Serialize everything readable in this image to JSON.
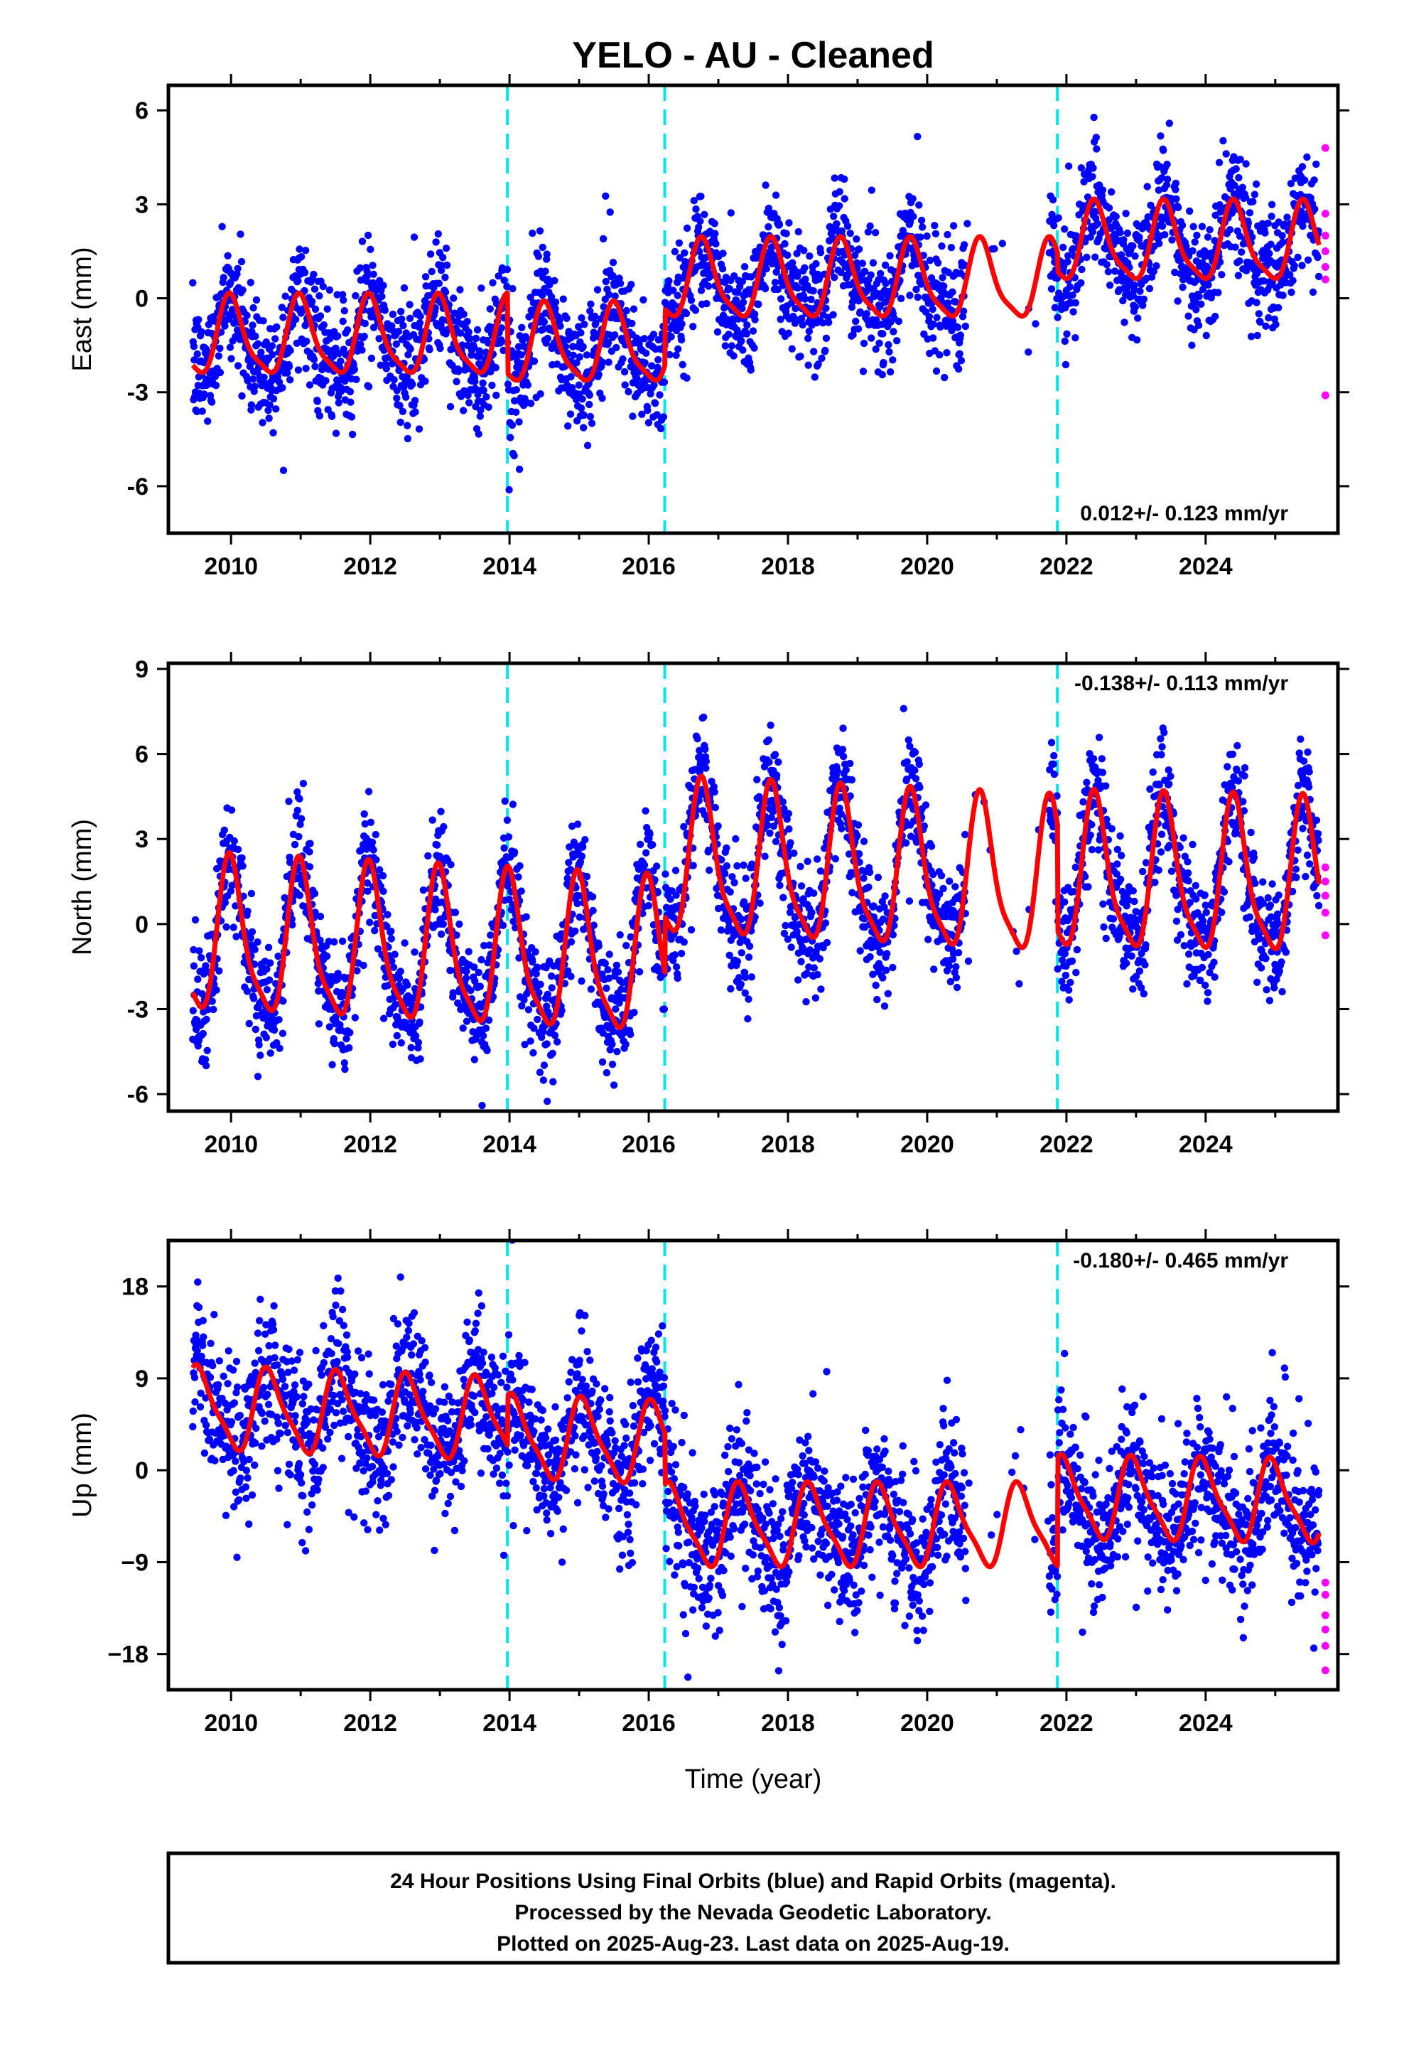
{
  "chart_data": {
    "type": "scatter",
    "title": "YELO  - AU - Cleaned",
    "xlabel": "Time (year)",
    "xlim": [
      2009.1,
      2025.9
    ],
    "x_ticks": [
      2010,
      2012,
      2014,
      2016,
      2018,
      2020,
      2022,
      2024
    ],
    "x_tick_labels": [
      "2010",
      "2012",
      "2014",
      "2016",
      "2018",
      "2020",
      "2022",
      "2024"
    ],
    "grid": false,
    "colors": {
      "final_orbits": "#0000ff",
      "rapid_orbits": "#ff00ff",
      "model": "#ff0000",
      "offsets": "#00e5ee",
      "frame": "#000000"
    },
    "offset_epochs": [
      2013.97,
      2016.23,
      2021.87
    ],
    "data_span": [
      2009.45,
      2025.63
    ],
    "panels": [
      {
        "name": "east",
        "ylabel": "East (mm)",
        "ylim": [
          -7.5,
          6.8
        ],
        "y_ticks": [
          -6,
          -3,
          0,
          3,
          6
        ],
        "y_tick_labels": [
          "-6",
          "-3",
          "0",
          "3",
          "6"
        ],
        "rate_label": "0.012+/- 0.123 mm/yr",
        "rate_position": "bottom-right",
        "model": {
          "amplitude": 1.2,
          "phase_year": 0.55,
          "segments": [
            {
              "from": 2009.45,
              "to": 2013.97,
              "base": -1.3
            },
            {
              "from": 2013.97,
              "to": 2016.23,
              "base": -1.55
            },
            {
              "from": 2016.23,
              "to": 2021.87,
              "base": 0.5
            },
            {
              "from": 2021.87,
              "to": 2025.63,
              "base": 1.7
            }
          ]
        },
        "scatter_sigma": 0.95,
        "rapid_points": [
          4.8,
          2.7,
          2.0,
          1.5,
          1.0,
          0.6,
          -3.1
        ]
      },
      {
        "name": "north",
        "ylabel": "North (mm)",
        "ylim": [
          -6.6,
          9.2
        ],
        "y_ticks": [
          -6,
          -3,
          0,
          3,
          6,
          9
        ],
        "y_tick_labels": [
          "-6",
          "-3",
          "0",
          "3",
          "6",
          "9"
        ],
        "rate_label": "-0.138+/- 0.113 mm/yr",
        "rate_position": "top-right",
        "model": {
          "amplitude": 2.6,
          "phase_year": 0.55,
          "segments": [
            {
              "from": 2009.45,
              "to": 2016.23,
              "base": -0.6,
              "slope": -0.12
            },
            {
              "from": 2016.23,
              "to": 2021.87,
              "base": 2.1,
              "slope": -0.12
            },
            {
              "from": 2021.87,
              "to": 2025.63,
              "base": 1.6,
              "slope": -0.05
            }
          ]
        },
        "scatter_sigma": 1.05,
        "rapid_points": [
          2.0,
          1.5,
          1.0,
          0.4,
          -0.4
        ]
      },
      {
        "name": "up",
        "ylabel": "Up (mm)",
        "ylim": [
          -21.5,
          22.5
        ],
        "y_ticks": [
          -18,
          -9,
          0,
          9,
          18
        ],
        "y_tick_labels": [
          "−18",
          "−9",
          "0",
          "9",
          "18"
        ],
        "rate_label": "-0.180+/- 0.465 mm/yr",
        "rate_position": "top-right",
        "model": {
          "amplitude": 3.8,
          "phase_year": 0.1,
          "segments": [
            {
              "from": 2009.45,
              "to": 2013.97,
              "base": 6.0,
              "slope": -0.25
            },
            {
              "from": 2013.97,
              "to": 2016.23,
              "base": 3.2,
              "slope": -0.3
            },
            {
              "from": 2016.23,
              "to": 2021.87,
              "base": -5.5,
              "slope": 0.0
            },
            {
              "from": 2021.87,
              "to": 2025.63,
              "base": -2.8,
              "slope": -0.1
            }
          ]
        },
        "scatter_sigma": 3.6,
        "rapid_points": [
          -11.0,
          -12.2,
          -14.2,
          -15.6,
          -17.2,
          -19.6
        ]
      }
    ]
  },
  "footer": {
    "line1": "24 Hour Positions Using Final Orbits (blue) and Rapid Orbits (magenta).",
    "line2": "Processed by the Nevada Geodetic Laboratory.",
    "line3": "Plotted on 2025-Aug-23. Last data on 2025-Aug-19."
  }
}
